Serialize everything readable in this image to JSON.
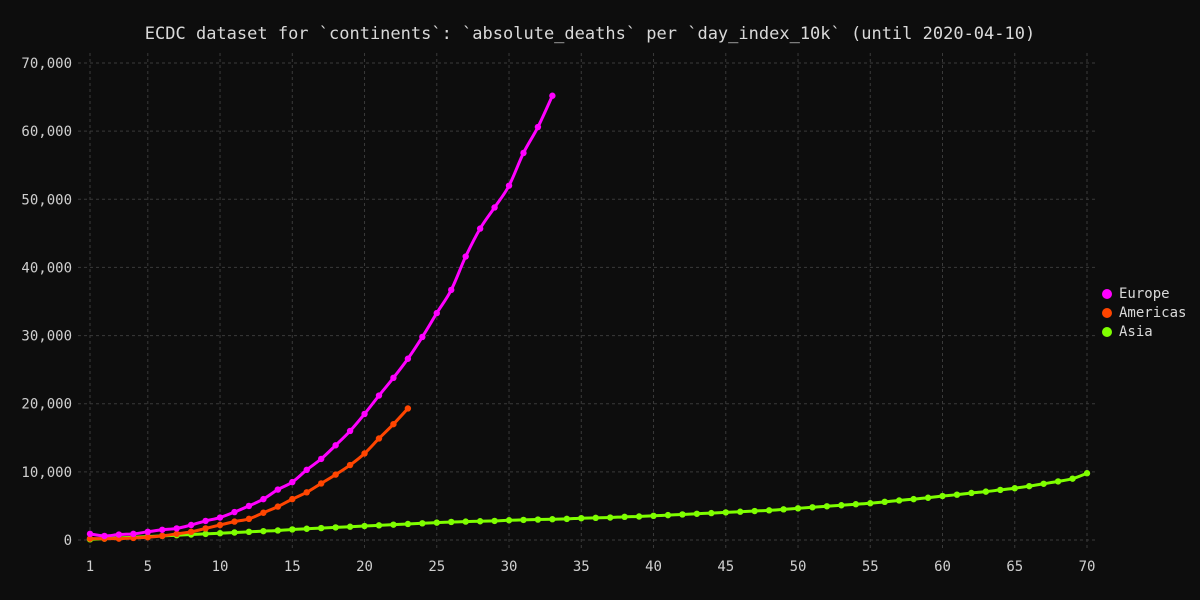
{
  "chart_data": {
    "type": "line",
    "title": "ECDC dataset for `continents`: `absolute_deaths` per `day_index_10k` (until 2020-04-10)",
    "xlabel": "",
    "ylabel": "",
    "xlim": [
      1,
      70
    ],
    "ylim": [
      0,
      70000
    ],
    "x_ticks": [
      1,
      5,
      10,
      15,
      20,
      25,
      30,
      35,
      40,
      45,
      50,
      55,
      60,
      65,
      70
    ],
    "y_ticks": [
      0,
      10000,
      20000,
      30000,
      40000,
      50000,
      60000,
      70000
    ],
    "y_tick_labels": [
      "0",
      "10,000",
      "20,000",
      "30,000",
      "40,000",
      "50,000",
      "60,000",
      "70,000"
    ],
    "grid": true,
    "legend_position": "right",
    "series": [
      {
        "name": "Europe",
        "color": "#ff00ff",
        "x": [
          1,
          2,
          3,
          4,
          5,
          6,
          7,
          8,
          9,
          10,
          11,
          12,
          13,
          14,
          15,
          16,
          17,
          18,
          19,
          20,
          21,
          22,
          23,
          24,
          25,
          26,
          27,
          28,
          29,
          30,
          31,
          32,
          33
        ],
        "y": [
          900,
          600,
          800,
          900,
          1200,
          1500,
          1700,
          2200,
          2800,
          3300,
          4100,
          5000,
          6000,
          7400,
          8500,
          10300,
          11900,
          13900,
          16000,
          18500,
          21200,
          23800,
          26600,
          29800,
          33300,
          36700,
          41600,
          45700,
          48800,
          52000,
          56800,
          60600,
          65200
        ]
      },
      {
        "name": "Americas",
        "color": "#ff4500",
        "x": [
          1,
          2,
          3,
          4,
          5,
          6,
          7,
          8,
          9,
          10,
          11,
          12,
          13,
          14,
          15,
          16,
          17,
          18,
          19,
          20,
          21,
          22,
          23
        ],
        "y": [
          200,
          200,
          200,
          300,
          400,
          600,
          900,
          1200,
          1700,
          2200,
          2700,
          3100,
          4000,
          4900,
          6000,
          7000,
          8300,
          9600,
          11000,
          12700,
          14900,
          17000,
          19300
        ]
      },
      {
        "name": "Asia",
        "color": "#7fff00",
        "x": [
          1,
          2,
          3,
          4,
          5,
          6,
          7,
          8,
          9,
          10,
          11,
          12,
          13,
          14,
          15,
          16,
          17,
          18,
          19,
          20,
          21,
          22,
          23,
          24,
          25,
          26,
          27,
          28,
          29,
          30,
          31,
          32,
          33,
          34,
          35,
          36,
          37,
          38,
          39,
          40,
          41,
          42,
          43,
          44,
          45,
          46,
          47,
          48,
          49,
          50,
          51,
          52,
          53,
          54,
          55,
          56,
          57,
          58,
          59,
          60,
          61,
          62,
          63,
          64,
          65,
          66,
          67,
          68,
          69,
          70
        ],
        "y": [
          100,
          200,
          300,
          400,
          500,
          600,
          700,
          800,
          900,
          1000,
          1100,
          1200,
          1300,
          1400,
          1550,
          1650,
          1750,
          1850,
          1950,
          2050,
          2150,
          2250,
          2350,
          2450,
          2550,
          2650,
          2700,
          2750,
          2800,
          2900,
          2950,
          3000,
          3050,
          3100,
          3200,
          3250,
          3300,
          3400,
          3450,
          3550,
          3650,
          3750,
          3850,
          3950,
          4050,
          4150,
          4250,
          4350,
          4500,
          4650,
          4800,
          4950,
          5100,
          5250,
          5400,
          5600,
          5800,
          6000,
          6200,
          6450,
          6650,
          6900,
          7100,
          7350,
          7600,
          7900,
          8250,
          8600,
          9000,
          9800
        ]
      }
    ]
  }
}
